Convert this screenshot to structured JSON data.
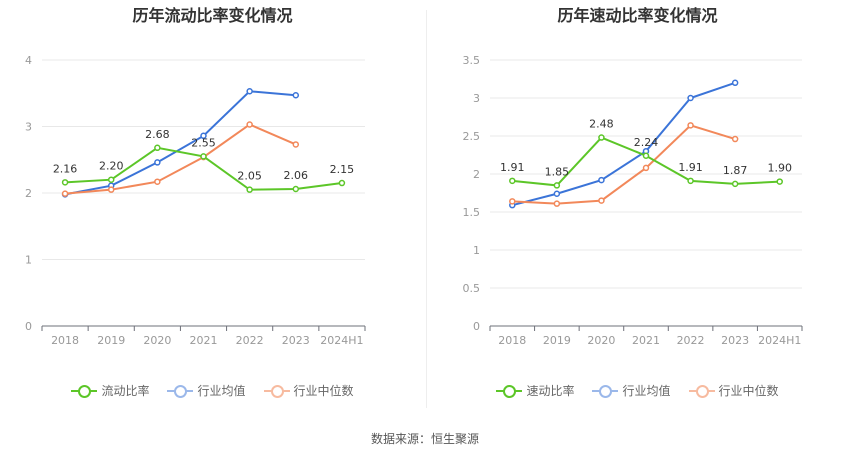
{
  "footer": {
    "source": "数据来源：恒生聚源"
  },
  "chart_data": [
    {
      "type": "line",
      "title": "历年流动比率变化情况",
      "categories": [
        "2018",
        "2019",
        "2020",
        "2021",
        "2022",
        "2023",
        "2024H1"
      ],
      "ylim": [
        0,
        4
      ],
      "yticks": [
        0,
        1,
        2,
        3,
        4
      ],
      "grid": true,
      "legend_position": "bottom",
      "series": [
        {
          "name": "流动比率",
          "color": "#5cc628",
          "labeled": true,
          "values": [
            2.16,
            2.2,
            2.68,
            2.55,
            2.05,
            2.06,
            2.15
          ],
          "labels": [
            "2.16",
            "2.20",
            "2.68",
            "2.55",
            "2.05",
            "2.06",
            "2.15"
          ]
        },
        {
          "name": "行业均值",
          "color": "#3b74d8",
          "labeled": false,
          "values": [
            1.98,
            2.11,
            2.46,
            2.86,
            3.53,
            3.47,
            null
          ]
        },
        {
          "name": "行业中位数",
          "color": "#f2885a",
          "labeled": false,
          "values": [
            1.99,
            2.05,
            2.17,
            2.54,
            3.03,
            2.73,
            null
          ]
        }
      ]
    },
    {
      "type": "line",
      "title": "历年速动比率变化情况",
      "categories": [
        "2018",
        "2019",
        "2020",
        "2021",
        "2022",
        "2023",
        "2024H1"
      ],
      "ylim": [
        0,
        3.5
      ],
      "yticks": [
        0,
        0.5,
        1,
        1.5,
        2,
        2.5,
        3,
        3.5
      ],
      "grid": true,
      "legend_position": "bottom",
      "series": [
        {
          "name": "速动比率",
          "color": "#5cc628",
          "labeled": true,
          "values": [
            1.91,
            1.85,
            2.48,
            2.24,
            1.91,
            1.87,
            1.9
          ],
          "labels": [
            "1.91",
            "1.85",
            "2.48",
            "2.24",
            "1.91",
            "1.87",
            "1.90"
          ]
        },
        {
          "name": "行业均值",
          "color": "#3b74d8",
          "labeled": false,
          "values": [
            1.59,
            1.74,
            1.92,
            2.3,
            3.0,
            3.2,
            null
          ]
        },
        {
          "name": "行业中位数",
          "color": "#f2885a",
          "labeled": false,
          "values": [
            1.64,
            1.61,
            1.65,
            2.08,
            2.64,
            2.46,
            null
          ]
        }
      ]
    }
  ]
}
